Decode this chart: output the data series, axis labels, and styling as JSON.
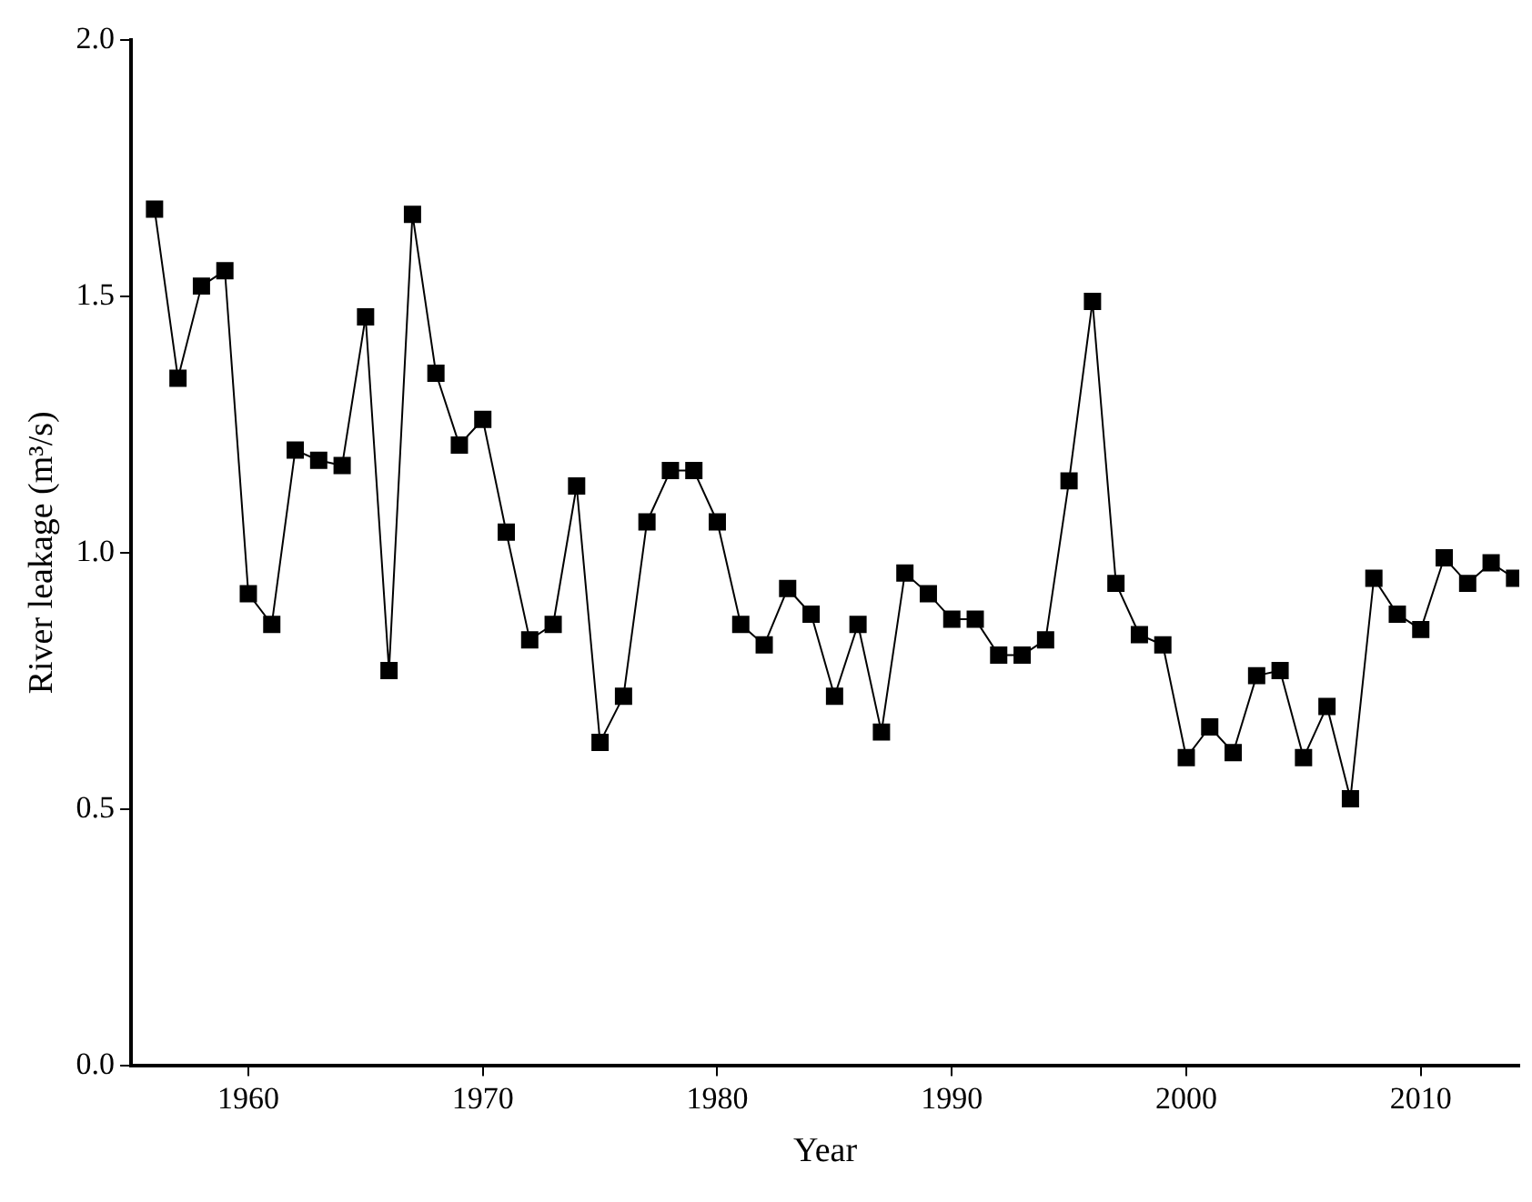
{
  "chart_data": {
    "type": "line",
    "xlabel": "Year",
    "ylabel": "River leakage (m³/s)",
    "x": [
      1956,
      1957,
      1958,
      1959,
      1960,
      1961,
      1962,
      1963,
      1964,
      1965,
      1966,
      1967,
      1968,
      1969,
      1970,
      1971,
      1972,
      1973,
      1974,
      1975,
      1976,
      1977,
      1978,
      1979,
      1980,
      1981,
      1982,
      1983,
      1984,
      1985,
      1986,
      1987,
      1988,
      1989,
      1990,
      1991,
      1992,
      1993,
      1994,
      1995,
      1996,
      1997,
      1998,
      1999,
      2000,
      2001,
      2002,
      2003,
      2004,
      2005,
      2006,
      2007,
      2008,
      2009,
      2010,
      2011,
      2012,
      2013,
      2014
    ],
    "series": [
      {
        "color": "#000000",
        "values": [
          1.67,
          1.34,
          1.52,
          1.55,
          0.92,
          0.86,
          1.2,
          1.18,
          1.17,
          1.46,
          0.77,
          1.66,
          1.35,
          1.21,
          1.26,
          1.04,
          0.83,
          0.86,
          1.13,
          0.63,
          0.72,
          1.06,
          1.16,
          1.16,
          1.06,
          0.86,
          0.82,
          0.93,
          0.88,
          0.72,
          0.86,
          0.65,
          0.96,
          0.92,
          0.87,
          0.87,
          0.8,
          0.8,
          0.83,
          1.14,
          1.49,
          0.94,
          0.84,
          0.82,
          0.6,
          0.66,
          0.61,
          0.76,
          0.77,
          0.6,
          0.7,
          0.52,
          0.95,
          0.88,
          0.85,
          0.99,
          0.94,
          0.98,
          0.95
        ]
      }
    ],
    "xlim": [
      1955,
      2014.2
    ],
    "xticks": [
      1960,
      1970,
      1980,
      1990,
      2000,
      2010
    ],
    "ylim": [
      0,
      2.0
    ],
    "yticks": [
      {
        "value": 0,
        "label": "0.0"
      },
      {
        "value": 0.5,
        "label": "0.5"
      },
      {
        "value": 1.0,
        "label": "1.0"
      },
      {
        "value": 1.5,
        "label": "1.5"
      },
      {
        "value": 2.0,
        "label": "2.0"
      }
    ],
    "grid": false,
    "legend": false,
    "marker": "square",
    "line_style": "solid"
  }
}
